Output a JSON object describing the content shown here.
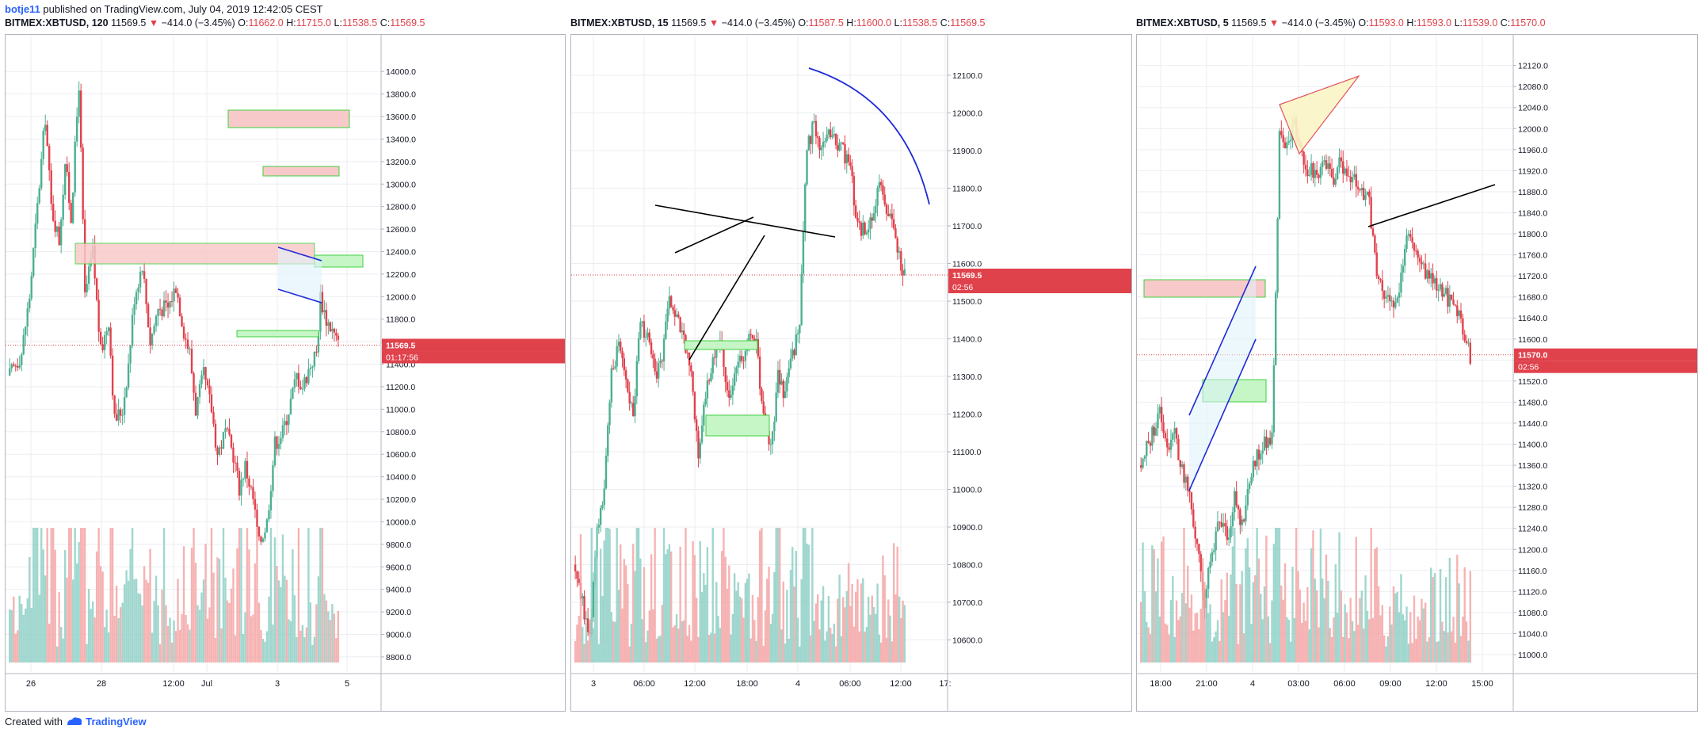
{
  "header": {
    "author": "botje11",
    "published": "published on TradingView.com, July 04, 2019 12:42:05 CEST"
  },
  "footer": {
    "created_with": "Created with",
    "brand": "TradingView"
  },
  "colors": {
    "up": "#4caf91",
    "down": "#e0424c",
    "up_vol": "#8fd0c6",
    "down_vol": "#f4a6a6",
    "grid": "#eceef2",
    "zone_fill": "#f8c9c9",
    "zone_border": "#3fd13f",
    "green_zone": "#c6f5c6",
    "price_label": "#e0424c"
  },
  "chart_data": [
    {
      "type": "candlestick",
      "title": {
        "symbol": "BITMEX:XBTUSD, 120",
        "last": "11569.5",
        "change": "−414.0 (−3.45%)",
        "o": "11662.0",
        "h": "11715.0",
        "l": "11538.5",
        "c": "11569.5"
      },
      "y_ticks": [
        "14000.0",
        "13800.0",
        "13600.0",
        "13400.0",
        "13200.0",
        "13000.0",
        "12800.0",
        "12600.0",
        "12400.0",
        "12200.0",
        "12000.0",
        "11800.0",
        "11600.0",
        "11400.0",
        "11200.0",
        "11000.0",
        "10800.0",
        "10600.0",
        "10400.0",
        "10200.0",
        "10000.0",
        "9800.0",
        "9600.0",
        "9400.0",
        "9200.0",
        "9000.0",
        "8800.0"
      ],
      "ylim": [
        8750,
        14100
      ],
      "x_ticks": [
        "26",
        "28",
        "12:00",
        "Jul",
        "3",
        "5"
      ],
      "price_label": "11569.5",
      "countdown": "01:17:56",
      "anchors": [
        [
          0,
          11300
        ],
        [
          6,
          11500
        ],
        [
          10,
          12000
        ],
        [
          14,
          12800
        ],
        [
          18,
          13600
        ],
        [
          21,
          12800
        ],
        [
          25,
          12500
        ],
        [
          28,
          13200
        ],
        [
          31,
          12700
        ],
        [
          35,
          13900
        ],
        [
          38,
          12000
        ],
        [
          42,
          12400
        ],
        [
          46,
          11500
        ],
        [
          50,
          11800
        ],
        [
          53,
          10900
        ],
        [
          57,
          11000
        ],
        [
          60,
          11400
        ],
        [
          63,
          12000
        ],
        [
          67,
          12300
        ],
        [
          71,
          11600
        ],
        [
          75,
          11900
        ],
        [
          80,
          11900
        ],
        [
          84,
          12100
        ],
        [
          88,
          11700
        ],
        [
          91,
          11500
        ],
        [
          94,
          11000
        ],
        [
          98,
          11300
        ],
        [
          102,
          11000
        ],
        [
          105,
          10600
        ],
        [
          109,
          10800
        ],
        [
          113,
          10600
        ],
        [
          116,
          10300
        ],
        [
          119,
          10500
        ],
        [
          123,
          10200
        ],
        [
          126,
          9800
        ],
        [
          130,
          10000
        ],
        [
          134,
          10700
        ],
        [
          138,
          10800
        ],
        [
          141,
          11000
        ],
        [
          145,
          11300
        ],
        [
          148,
          11200
        ],
        [
          152,
          11400
        ],
        [
          155,
          11500
        ],
        [
          157,
          12000
        ],
        [
          160,
          11800
        ],
        [
          163,
          11700
        ],
        [
          166,
          11570
        ]
      ]
    },
    {
      "type": "candlestick",
      "title": {
        "symbol": "BITMEX:XBTUSD, 15",
        "last": "11569.5",
        "change": "−414.0 (−3.45%)",
        "o": "11587.5",
        "h": "11600.0",
        "l": "11538.5",
        "c": "11569.5"
      },
      "y_ticks": [
        "12100.0",
        "12000.0",
        "11900.0",
        "11800.0",
        "11700.0",
        "11600.0",
        "11500.0",
        "11400.0",
        "11300.0",
        "11200.0",
        "11100.0",
        "11000.0",
        "10900.0",
        "10800.0",
        "10700.0",
        "10600.0"
      ],
      "ylim": [
        10540,
        12140
      ],
      "x_ticks": [
        "3",
        "06:00",
        "12:00",
        "18:00",
        "4",
        "06:00",
        "12:00",
        "17:"
      ],
      "price_label": "11569.5",
      "countdown": "02:56",
      "anchors": [
        [
          0,
          10800
        ],
        [
          4,
          10700
        ],
        [
          8,
          10600
        ],
        [
          12,
          10900
        ],
        [
          16,
          11000
        ],
        [
          20,
          11300
        ],
        [
          24,
          11400
        ],
        [
          28,
          11300
        ],
        [
          32,
          11200
        ],
        [
          36,
          11450
        ],
        [
          40,
          11400
        ],
        [
          44,
          11300
        ],
        [
          48,
          11350
        ],
        [
          52,
          11500
        ],
        [
          56,
          11450
        ],
        [
          60,
          11400
        ],
        [
          64,
          11300
        ],
        [
          68,
          11100
        ],
        [
          72,
          11250
        ],
        [
          76,
          11350
        ],
        [
          80,
          11400
        ],
        [
          84,
          11250
        ],
        [
          88,
          11300
        ],
        [
          92,
          11350
        ],
        [
          96,
          11400
        ],
        [
          100,
          11380
        ],
        [
          104,
          11200
        ],
        [
          108,
          11100
        ],
        [
          112,
          11300
        ],
        [
          116,
          11250
        ],
        [
          120,
          11350
        ],
        [
          124,
          11450
        ],
        [
          128,
          11900
        ],
        [
          132,
          11980
        ],
        [
          136,
          11900
        ],
        [
          140,
          11950
        ],
        [
          144,
          11930
        ],
        [
          148,
          11900
        ],
        [
          152,
          11850
        ],
        [
          156,
          11700
        ],
        [
          160,
          11680
        ],
        [
          164,
          11720
        ],
        [
          168,
          11800
        ],
        [
          172,
          11750
        ],
        [
          176,
          11700
        ],
        [
          180,
          11600
        ],
        [
          182,
          11570
        ]
      ]
    },
    {
      "type": "candlestick",
      "title": {
        "symbol": "BITMEX:XBTUSD, 5",
        "last": "11569.5",
        "change": "−414.0 (−3.45%)",
        "o": "11593.0",
        "h": "11593.0",
        "l": "11539.0",
        "c": "11570.0"
      },
      "y_ticks": [
        "12120.0",
        "12080.0",
        "12040.0",
        "12000.0",
        "11960.0",
        "11920.0",
        "11880.0",
        "11840.0",
        "11800.0",
        "11760.0",
        "11720.0",
        "11680.0",
        "11640.0",
        "11600.0",
        "11560.0",
        "11520.0",
        "11480.0",
        "11440.0",
        "11400.0",
        "11360.0",
        "11320.0",
        "11280.0",
        "11240.0",
        "11200.0",
        "11160.0",
        "11120.0",
        "11080.0",
        "11040.0",
        "11000.0"
      ],
      "ylim": [
        10985,
        12130
      ],
      "x_ticks": [
        "18:00",
        "21:00",
        "4",
        "03:00",
        "06:00",
        "09:00",
        "12:00",
        "15:00"
      ],
      "price_label": "11570.0",
      "countdown": "02:56",
      "anchors": [
        [
          0,
          11360
        ],
        [
          6,
          11420
        ],
        [
          10,
          11460
        ],
        [
          14,
          11400
        ],
        [
          18,
          11420
        ],
        [
          22,
          11350
        ],
        [
          26,
          11300
        ],
        [
          30,
          11200
        ],
        [
          34,
          11100
        ],
        [
          38,
          11200
        ],
        [
          42,
          11250
        ],
        [
          46,
          11220
        ],
        [
          50,
          11300
        ],
        [
          54,
          11250
        ],
        [
          58,
          11330
        ],
        [
          62,
          11380
        ],
        [
          66,
          11400
        ],
        [
          70,
          11420
        ],
        [
          74,
          11980
        ],
        [
          78,
          11960
        ],
        [
          82,
          12010
        ],
        [
          86,
          11940
        ],
        [
          90,
          11920
        ],
        [
          94,
          11910
        ],
        [
          98,
          11940
        ],
        [
          102,
          11900
        ],
        [
          106,
          11940
        ],
        [
          110,
          11920
        ],
        [
          114,
          11900
        ],
        [
          118,
          11880
        ],
        [
          122,
          11860
        ],
        [
          126,
          11720
        ],
        [
          130,
          11680
        ],
        [
          134,
          11660
        ],
        [
          138,
          11700
        ],
        [
          142,
          11800
        ],
        [
          146,
          11780
        ],
        [
          150,
          11740
        ],
        [
          154,
          11720
        ],
        [
          158,
          11700
        ],
        [
          162,
          11690
        ],
        [
          166,
          11660
        ],
        [
          170,
          11640
        ],
        [
          174,
          11600
        ],
        [
          176,
          11570
        ]
      ]
    }
  ]
}
